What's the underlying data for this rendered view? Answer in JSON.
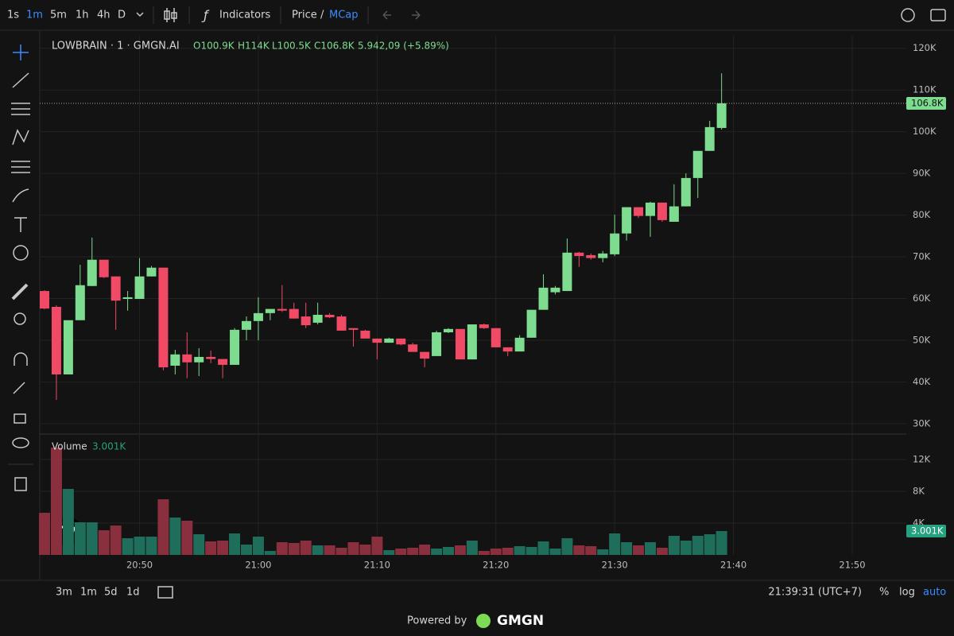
{
  "toolbar": {
    "intervals": [
      "1s",
      "1m",
      "5m",
      "1h",
      "4h",
      "D"
    ],
    "indicators": "Indicators",
    "price": "Price",
    "separator": "/",
    "mcap": "MCap"
  },
  "legend": {
    "symbol": "LOWBRAIN · 1 · GMGN.AI",
    "open": "O100.9K",
    "high": "H114K",
    "low": "L100.5K",
    "close": "C106.8K",
    "change": "5.942,09 (+5.89%)"
  },
  "chart_data": {
    "type": "candlestick",
    "x": [
      "20:42",
      "20:43",
      "20:44",
      "20:45",
      "20:46",
      "20:47",
      "20:48",
      "20:49",
      "20:50",
      "20:51",
      "20:52",
      "20:53",
      "20:54",
      "20:55",
      "20:56",
      "20:57",
      "20:58",
      "20:59",
      "21:00",
      "21:01",
      "21:02",
      "21:03",
      "21:04",
      "21:05",
      "21:06",
      "21:07",
      "21:08",
      "21:09",
      "21:10",
      "21:11",
      "21:12",
      "21:13",
      "21:14",
      "21:15",
      "21:16",
      "21:17",
      "21:18",
      "21:19",
      "21:20",
      "21:21",
      "21:22",
      "21:23",
      "21:24",
      "21:25",
      "21:26",
      "21:27",
      "21:28",
      "21:29",
      "21:30",
      "21:31",
      "21:32",
      "21:33",
      "21:34",
      "21:35",
      "21:36",
      "21:37",
      "21:38",
      "21:39"
    ],
    "open": [
      61800,
      58000,
      41800,
      54800,
      63000,
      69300,
      65300,
      59900,
      59900,
      65300,
      67400,
      43900,
      46600,
      44700,
      46000,
      45500,
      44100,
      52500,
      54600,
      56500,
      57500,
      57500,
      55700,
      54200,
      56100,
      55700,
      52900,
      52300,
      50400,
      49400,
      50400,
      49000,
      47200,
      46200,
      51900,
      52700,
      45400,
      53800,
      52900,
      48300,
      47300,
      50600,
      57300,
      61500,
      61800,
      71000,
      70400,
      69700,
      70600,
      75600,
      81900,
      79800,
      83000,
      78400,
      82100,
      88900,
      95400,
      100900
    ],
    "high": [
      62000,
      58400,
      54800,
      68100,
      74600,
      69300,
      65300,
      61800,
      69700,
      67800,
      67400,
      47700,
      51900,
      48100,
      47500,
      45500,
      52900,
      55700,
      60300,
      57500,
      63200,
      59000,
      59000,
      59000,
      56500,
      56100,
      52900,
      52500,
      50400,
      50600,
      50400,
      49400,
      47200,
      52300,
      52900,
      52700,
      53800,
      54000,
      52900,
      48300,
      51200,
      57300,
      65800,
      63000,
      74400,
      71200,
      70800,
      71400,
      80100,
      81900,
      81900,
      83200,
      83000,
      87400,
      90000,
      95400,
      102600,
      114000
    ],
    "low": [
      57400,
      35700,
      41800,
      54800,
      63000,
      64900,
      52500,
      57100,
      59900,
      65300,
      42800,
      41800,
      40900,
      41400,
      44500,
      40900,
      44100,
      50000,
      50000,
      54800,
      56800,
      55200,
      52900,
      53800,
      55300,
      52300,
      48500,
      50400,
      45400,
      49400,
      48800,
      47200,
      43500,
      46200,
      51700,
      45400,
      45400,
      52700,
      48300,
      46200,
      47300,
      50600,
      57300,
      61000,
      61800,
      67600,
      69300,
      68700,
      70200,
      73900,
      79300,
      74800,
      78400,
      78400,
      82100,
      84100,
      95400,
      100500
    ],
    "close": [
      57600,
      41800,
      54800,
      63200,
      69300,
      65100,
      59500,
      60300,
      65300,
      67400,
      43500,
      46600,
      44700,
      46000,
      45500,
      44100,
      52500,
      54600,
      56500,
      57500,
      57100,
      55200,
      53600,
      56100,
      55500,
      52300,
      52500,
      50400,
      49400,
      50400,
      49000,
      47200,
      45600,
      51900,
      52700,
      45400,
      53800,
      52900,
      48300,
      47300,
      50600,
      57300,
      62600,
      62600,
      71000,
      70200,
      69700,
      70800,
      75600,
      81900,
      79800,
      83000,
      78800,
      82100,
      88900,
      95400,
      101100,
      106800
    ],
    "xlim": [
      "20:42",
      "21:50"
    ],
    "xticks": [
      "20:50",
      "21:00",
      "21:10",
      "21:20",
      "21:30",
      "21:40",
      "21:50"
    ],
    "ylim": [
      27500,
      123000
    ],
    "yticks": [
      {
        "value": 30000,
        "label": "30K"
      },
      {
        "value": 40000,
        "label": "40K"
      },
      {
        "value": 50000,
        "label": "50K"
      },
      {
        "value": 60000,
        "label": "60K"
      },
      {
        "value": 70000,
        "label": "70K"
      },
      {
        "value": 80000,
        "label": "80K"
      },
      {
        "value": 90000,
        "label": "90K"
      },
      {
        "value": 100000,
        "label": "100K"
      },
      {
        "value": 110000,
        "label": "110K"
      },
      {
        "value": 120000,
        "label": "120K"
      }
    ],
    "last_price": {
      "value": 106800,
      "label": "106.8K"
    },
    "grid": true,
    "up_color": "#7ddc8f",
    "down_color": "#f04a66",
    "volume": {
      "title": "Volume",
      "values": [
        5300,
        13500,
        8300,
        4100,
        4100,
        3100,
        3700,
        2100,
        2300,
        2300,
        7000,
        4700,
        4300,
        2600,
        1700,
        1800,
        2700,
        1300,
        2300,
        500,
        1600,
        1500,
        1800,
        1200,
        1200,
        900,
        1600,
        1300,
        2300,
        600,
        800,
        900,
        1300,
        800,
        1000,
        1200,
        1800,
        500,
        800,
        900,
        1100,
        1000,
        1700,
        800,
        2100,
        1200,
        1100,
        700,
        2700,
        1600,
        1200,
        1600,
        900,
        2400,
        1800,
        2400,
        2600,
        3001
      ],
      "ylim": [
        0,
        15100
      ],
      "yticks": [
        {
          "value": 4000,
          "label": "4K"
        },
        {
          "value": 8000,
          "label": "8K"
        },
        {
          "value": 12000,
          "label": "12K"
        }
      ],
      "last": {
        "value": 3001,
        "label": "3.001K"
      },
      "up_color": "#1f6e5c",
      "down_color": "#8a2f3e"
    }
  },
  "bottom_bar": {
    "ranges": [
      "3m",
      "1m",
      "5d",
      "1d"
    ],
    "clock": "21:39:31 (UTC+7)",
    "percent": "%",
    "log": "log",
    "auto": "auto"
  },
  "footer": {
    "powered_by": "Powered by",
    "brand": "GMGN"
  }
}
